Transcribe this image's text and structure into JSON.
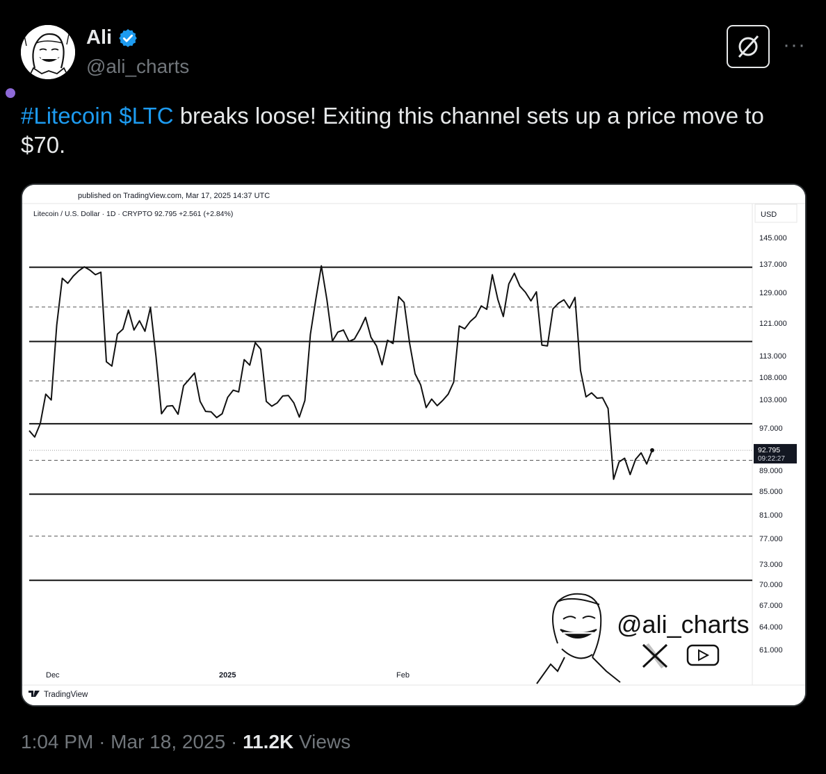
{
  "author": {
    "name": "Ali",
    "handle": "@ali_charts",
    "verified": true
  },
  "tweet": {
    "hashtag": "#Litecoin",
    "cashtag": "$LTC",
    "text_rest": " breaks loose! Exiting this channel sets up a price move to $70."
  },
  "meta": {
    "time": "1:04 PM",
    "separator": "·",
    "date": "Mar 18, 2025",
    "views_count": "11.2K",
    "views_label": "Views"
  },
  "icons": {
    "grok": "grok-icon",
    "more": "more-options-icon",
    "verified": "verified-badge-icon",
    "tradingview": "tradingview-logo-icon"
  },
  "colors": {
    "link": "#1d9bf0",
    "background": "#000000",
    "text": "#e7e9ea",
    "muted": "#71767b"
  },
  "chart": {
    "published": "published on TradingView.com, Mar 17, 2025 14:37 UTC",
    "symbol_line": "Litecoin / U.S. Dollar · 1D · CRYPTO  92.795  +2.561 (+2.84%)",
    "currency": "USD",
    "current_price": "92.795",
    "countdown": "09:22:27",
    "x_labels": [
      "Dec",
      "2025",
      "Feb"
    ],
    "y_labels": [
      "145.000",
      "137.000",
      "129.000",
      "121.000",
      "113.000",
      "108.000",
      "103.000",
      "97.000",
      "89.000",
      "85.000",
      "81.000",
      "77.000",
      "73.000",
      "70.000",
      "67.000",
      "64.000",
      "61.000"
    ],
    "brand": "TradingView",
    "watermark_handle": "@ali_charts"
  },
  "chart_data": {
    "type": "line",
    "title": "Litecoin / U.S. Dollar · 1D · CRYPTO",
    "ylabel": "USD",
    "ylim": [
      58,
      149
    ],
    "grid": false,
    "channel_lines_solid": [
      136.1,
      116.5,
      97.9,
      84.5,
      70.6
    ],
    "channel_lines_dashed": [
      125.2,
      107.2,
      90.9,
      77.4
    ],
    "current_price": 92.795,
    "series": [
      {
        "values": [
          96.5,
          95.3,
          97.9,
          104.2,
          102.9,
          120.5,
          133.0,
          131.6,
          133.6,
          135.1,
          136.2,
          135.3,
          134.0,
          134.7,
          111.6,
          110.6,
          118.3,
          119.5,
          124.4,
          119.3,
          121.6,
          119.0,
          125.1,
          112.8,
          100.0,
          101.6,
          101.7,
          99.9,
          106.1,
          107.5,
          109.0,
          102.6,
          100.5,
          100.4,
          99.2,
          100.0,
          103.5,
          105.1,
          104.7,
          112.1,
          110.8,
          116.2,
          114.6,
          102.6,
          101.6,
          102.3,
          103.8,
          103.9,
          102.3,
          99.3,
          102.8,
          118.2,
          127.3,
          136.5,
          127.1,
          116.6,
          118.8,
          119.3,
          116.5,
          117.1,
          119.5,
          122.5,
          117.5,
          115.4,
          110.9,
          116.8,
          116.0,
          127.9,
          126.4,
          116.1,
          108.8,
          106.3,
          101.3,
          103.1,
          101.7,
          102.8,
          104.2,
          106.9,
          120.3,
          119.6,
          121.4,
          122.7,
          125.5,
          124.6,
          134.0,
          127.2,
          122.7,
          131.4,
          134.4,
          130.8,
          129.1,
          126.8,
          129.2,
          115.6,
          115.4,
          124.7,
          126.2,
          127.1,
          124.9,
          127.7,
          109.6,
          103.6,
          104.5,
          103.3,
          103.4,
          101.1,
          87.3,
          90.6,
          91.3,
          88.2,
          91.1,
          92.3,
          90.2,
          92.8
        ]
      }
    ]
  }
}
